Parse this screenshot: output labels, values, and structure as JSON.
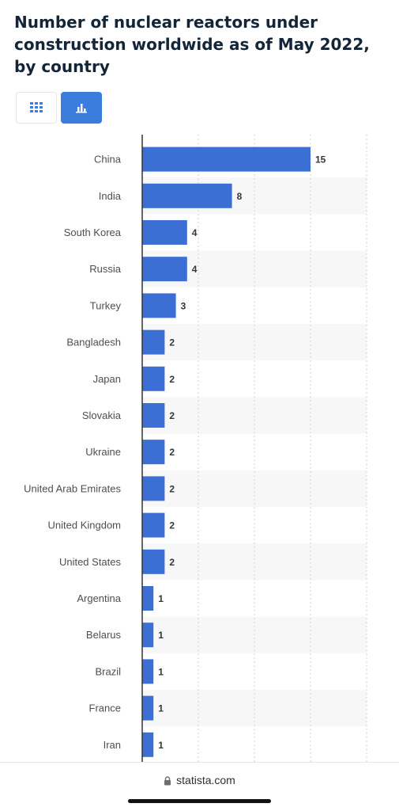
{
  "page": {
    "title": "Number of nuclear reactors under construction worldwide as of May 2022, by country"
  },
  "toolbar": {
    "table_view_icon": "grid-icon",
    "chart_view_icon": "bar-chart-icon",
    "active_view": "chart"
  },
  "colors": {
    "bar": "#3b6fd4",
    "stripe": "#f7f7f7",
    "axis": "#333333",
    "grid": "#d0d0d0",
    "toggle_active": "#3b7ddd"
  },
  "chart_data": {
    "type": "bar",
    "orientation": "horizontal",
    "title": "Number of nuclear reactors under construction worldwide as of May 2022, by country",
    "xlabel": "",
    "ylabel": "",
    "xlim": [
      0,
      20
    ],
    "grid": true,
    "categories": [
      "China",
      "India",
      "South Korea",
      "Russia",
      "Turkey",
      "Bangladesh",
      "Japan",
      "Slovakia",
      "Ukraine",
      "United Arab Emirates",
      "United Kingdom",
      "United States",
      "Argentina",
      "Belarus",
      "Brazil",
      "France",
      "Iran"
    ],
    "values": [
      15,
      8,
      4,
      4,
      3,
      2,
      2,
      2,
      2,
      2,
      2,
      2,
      1,
      1,
      1,
      1,
      1
    ]
  },
  "footer": {
    "source": "statista.com",
    "lock_icon": "lock-icon"
  }
}
